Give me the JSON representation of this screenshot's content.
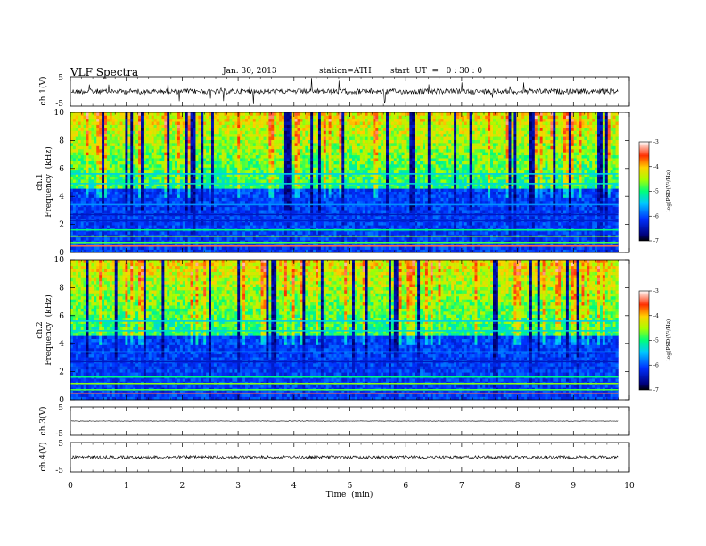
{
  "header": {
    "title": "VLF  Spectra",
    "date": "Jan. 30, 2013",
    "station": "station=ATH",
    "start": "start  UT  =   0 : 30 : 0"
  },
  "chart_data": [
    {
      "type": "line",
      "panel": "ch1-waveform",
      "ylabel": "ch.1(V)",
      "ylim": [
        -5,
        5
      ],
      "yticks": [
        "5",
        "-5"
      ],
      "xlim": [
        0,
        10
      ]
    },
    {
      "type": "heatmap",
      "panel": "ch1-spectrogram",
      "ylabel": [
        "ch.1",
        "Frequency  (kHz)"
      ],
      "ylim": [
        0,
        10
      ],
      "yticks": [
        "0",
        "2",
        "4",
        "6",
        "8",
        "10"
      ],
      "xlim": [
        0,
        10
      ],
      "data_extent_min": 9.8,
      "colorbar": {
        "label": "log(PSD(V²/Hz)",
        "range": [
          -7,
          -3
        ],
        "ticks": [
          "-3",
          "-4",
          "-5",
          "-6",
          "-7"
        ]
      }
    },
    {
      "type": "heatmap",
      "panel": "ch2-spectrogram",
      "ylabel": [
        "ch.2",
        "Frequency  (kHz)"
      ],
      "ylim": [
        0,
        10
      ],
      "yticks": [
        "0",
        "2",
        "4",
        "6",
        "8",
        "10"
      ],
      "xlim": [
        0,
        10
      ],
      "data_extent_min": 9.8,
      "colorbar": {
        "label": "log(PSD(V²/Hz)",
        "range": [
          -7,
          -3
        ],
        "ticks": [
          "-3",
          "-4",
          "-5",
          "-6",
          "-7"
        ]
      }
    },
    {
      "type": "line",
      "panel": "ch3-waveform",
      "ylabel": "ch.3(V)",
      "ylim": [
        -5,
        5
      ],
      "yticks": [
        "5",
        "-5"
      ],
      "xlim": [
        0,
        10
      ]
    },
    {
      "type": "line",
      "panel": "ch4-waveform",
      "ylabel": "ch.4(V)",
      "ylim": [
        -5,
        5
      ],
      "yticks": [
        "5",
        "-5"
      ],
      "xlim": [
        0,
        10
      ],
      "xlabel": "Time  (min)",
      "xticks": [
        "0",
        "1",
        "2",
        "3",
        "4",
        "5",
        "6",
        "7",
        "8",
        "9",
        "10"
      ]
    }
  ]
}
